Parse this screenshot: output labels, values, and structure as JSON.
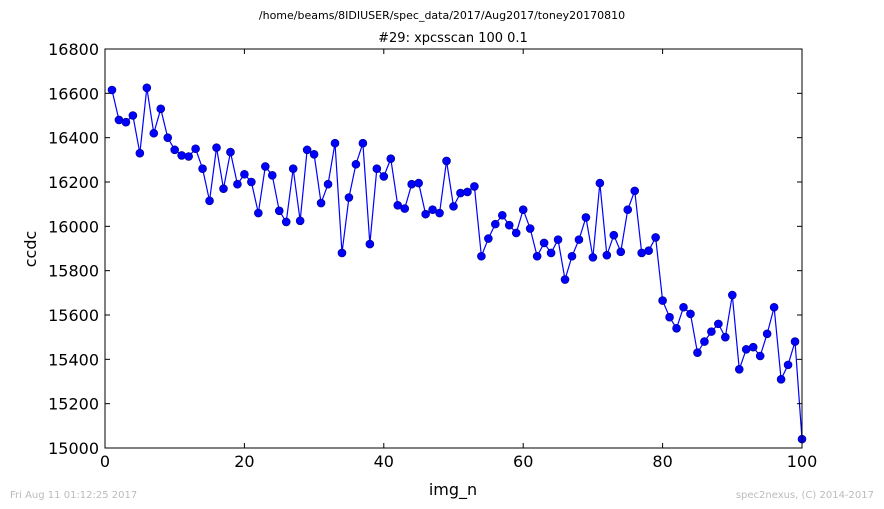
{
  "figure": {
    "suptitle": "/home/beams/8IDIUSER/spec_data/2017/Aug2017/toney20170810",
    "footer_left": "Fri Aug 11 01:12:25 2017",
    "footer_right": "spec2nexus, (C) 2014-2017"
  },
  "chart_data": {
    "type": "line",
    "title": "#29: xpcsscan 100 0.1",
    "xlabel": "img_n",
    "ylabel": "ccdc",
    "xlim": [
      0,
      100
    ],
    "ylim": [
      15000,
      16800
    ],
    "xticks": [
      0,
      20,
      40,
      60,
      80,
      100
    ],
    "yticks": [
      15000,
      15200,
      15400,
      15600,
      15800,
      16000,
      16200,
      16400,
      16600,
      16800
    ],
    "grid": false,
    "marker": "circle",
    "color": "#0000ff",
    "series": [
      {
        "x": [
          1,
          2,
          3,
          4,
          5,
          6,
          7,
          8,
          9,
          10,
          11,
          12,
          13,
          14,
          15,
          16,
          17,
          18,
          19,
          20,
          21,
          22,
          23,
          24,
          25,
          26,
          27,
          28,
          29,
          30,
          31,
          32,
          33,
          34,
          35,
          36,
          37,
          38,
          39,
          40,
          41,
          42,
          43,
          44,
          45,
          46,
          47,
          48,
          49,
          50,
          51,
          52,
          53,
          54,
          55,
          56,
          57,
          58,
          59,
          60,
          61,
          62,
          63,
          64,
          65,
          66,
          67,
          68,
          69,
          70,
          71,
          72,
          73,
          74,
          75,
          76,
          77,
          78,
          79,
          80,
          81,
          82,
          83,
          84,
          85,
          86,
          87,
          88,
          89,
          90,
          91,
          92,
          93,
          94,
          95,
          96,
          97,
          98,
          99,
          100
        ],
        "values": [
          16615,
          16480,
          16470,
          16500,
          16330,
          16625,
          16420,
          16530,
          16400,
          16345,
          16320,
          16315,
          16350,
          16260,
          16115,
          16355,
          16170,
          16335,
          16190,
          16235,
          16200,
          16060,
          16270,
          16230,
          16070,
          16020,
          16260,
          16025,
          16345,
          16325,
          16105,
          16190,
          16375,
          15880,
          16130,
          16280,
          16375,
          15920,
          16260,
          16225,
          16305,
          16095,
          16080,
          16190,
          16195,
          16055,
          16075,
          16060,
          16295,
          16090,
          16150,
          16155,
          16180,
          15865,
          15945,
          16010,
          16050,
          16005,
          15970,
          16075,
          15990,
          15865,
          15925,
          15880,
          15940,
          15760,
          15865,
          15940,
          16040,
          15860,
          16195,
          15870,
          15960,
          15885,
          16075,
          16160,
          15880,
          15890,
          15950,
          15665,
          15590,
          15540,
          15635,
          15605,
          15430,
          15480,
          15525,
          15560,
          15500,
          15690,
          15355,
          15445,
          15455,
          15415,
          15515,
          15635,
          15310,
          15375,
          15480,
          15040
        ]
      }
    ]
  }
}
